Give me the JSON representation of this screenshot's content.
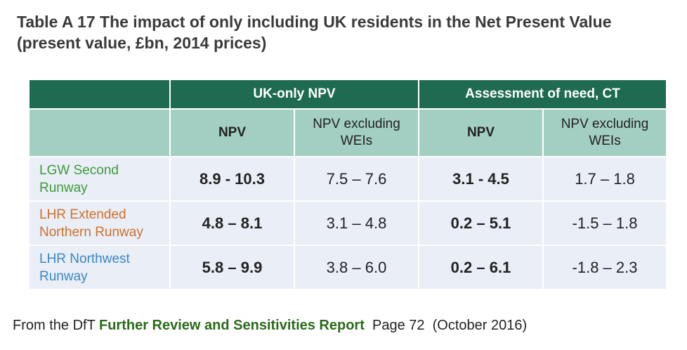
{
  "title": "Table A 17 The impact of only including UK residents in the Net Present Value (present value, £bn, 2014 prices)",
  "table": {
    "group_headers": [
      "UK-only NPV",
      "Assessment of need, CT"
    ],
    "sub_headers": [
      "NPV",
      "NPV excluding WEIs",
      "NPV",
      "NPV excluding WEIs"
    ],
    "rows": [
      {
        "label": "LGW Second Runway",
        "label_color": "#3f9a3a",
        "values": [
          "8.9 - 10.3",
          "7.5 – 7.6",
          "3.1 - 4.5",
          "1.7 – 1.8"
        ]
      },
      {
        "label": "LHR Extended Northern Runway",
        "label_color": "#d0702a",
        "values": [
          "4.8 – 8.1",
          "3.1 – 4.8",
          "0.2 – 5.1",
          "-1.5 – 1.8"
        ]
      },
      {
        "label": "LHR Northwest Runway",
        "label_color": "#3b86c4",
        "values": [
          "5.8 – 9.9",
          "3.8 – 6.0",
          "0.2 – 6.1",
          "-1.8 – 2.3"
        ]
      }
    ]
  },
  "source": {
    "prefix": "From the DfT ",
    "report": "Further Review and Sensitivities Report",
    "suffix": "  Page 72  (October 2016)"
  },
  "colors": {
    "header_dark": "#1f6b52",
    "header_light": "#a3cfc2",
    "body_bg": "#e9eef7",
    "report_link": "#2b6a1b"
  }
}
